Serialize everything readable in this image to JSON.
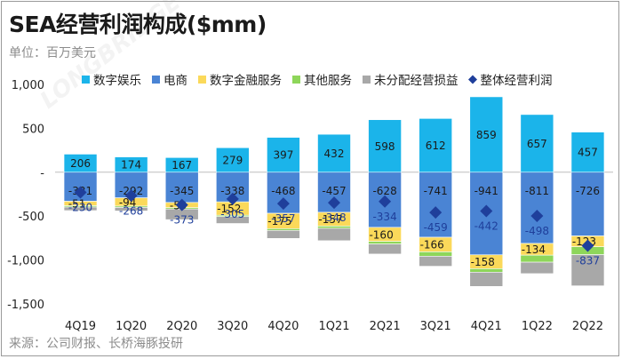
{
  "header": {
    "title": "SEA经营利润构成($mm)",
    "unit": "单位：百万美元"
  },
  "footer": {
    "source": "来源：公司财报、长桥海豚投研"
  },
  "watermark": "LONGBRIDGE DolphinResearch",
  "colors": {
    "digital_entertainment": "#1bb4ea",
    "ecommerce": "#4a84d4",
    "digital_financial": "#fbd95a",
    "other_services": "#8ed65a",
    "unallocated": "#a8a8a8",
    "total": "#1f3f9b"
  },
  "chart_data": {
    "type": "bar",
    "stacked": true,
    "title": "SEA经营利润构成($mm)",
    "ylabel": "",
    "ylim": [
      -1500,
      1000
    ],
    "yticks": [
      -1500,
      -1000,
      -500,
      0,
      500,
      1000
    ],
    "ytick_labels": [
      "-1,500",
      "-1,000",
      "-500",
      "-",
      "500",
      "1,000"
    ],
    "categories": [
      "4Q19",
      "1Q20",
      "2Q20",
      "3Q20",
      "4Q20",
      "1Q21",
      "2Q21",
      "3Q21",
      "4Q21",
      "1Q22",
      "2Q22"
    ],
    "legend_position": "top",
    "series": [
      {
        "name": "数字娱乐",
        "key": "digital_entertainment",
        "values": [
          206,
          174,
          167,
          279,
          397,
          432,
          598,
          612,
          859,
          657,
          457
        ]
      },
      {
        "name": "电商",
        "key": "ecommerce",
        "values": [
          -331,
          -292,
          -345,
          -338,
          -468,
          -457,
          -628,
          -741,
          -941,
          -811,
          -726
        ]
      },
      {
        "name": "数字金融服务",
        "key": "digital_financial",
        "values": [
          -51,
          -94,
          -59,
          -152,
          -175,
          -157,
          -160,
          -166,
          -158,
          -134,
          -123
        ]
      },
      {
        "name": "其他服务",
        "key": "other_services",
        "values": [
          -15,
          -15,
          -15,
          -15,
          -20,
          -25,
          -30,
          -50,
          -40,
          -80,
          -90
        ]
      },
      {
        "name": "未分配经营损益",
        "key": "unallocated",
        "values": [
          -40,
          -40,
          -121,
          -79,
          -91,
          -141,
          -114,
          -114,
          -162,
          -130,
          -355
        ]
      }
    ],
    "line": {
      "name": "整体经营利润",
      "key": "total",
      "marker": "diamond",
      "values": [
        -230,
        -268,
        -373,
        -305,
        -357,
        -348,
        -334,
        -459,
        -442,
        -498,
        -837
      ]
    },
    "data_labels": {
      "digital_entertainment": [
        "206",
        "174",
        "167",
        "279",
        "397",
        "432",
        "598",
        "612",
        "859",
        "657",
        "457"
      ],
      "ecommerce": [
        "-331",
        "-292",
        "-345",
        "-338",
        "-468",
        "-457",
        "-628",
        "-741",
        "-941",
        "-811",
        "-726"
      ],
      "digital_financial": [
        "-51",
        "-94",
        "-59",
        "-152",
        "-175",
        "-157",
        "-160",
        "-166",
        "-158",
        "-134",
        "-123"
      ],
      "total": [
        "-230",
        "-268",
        "-373",
        "-305",
        "-357",
        "-348",
        "-334",
        "-459",
        "-442",
        "-498",
        "-837"
      ]
    }
  }
}
